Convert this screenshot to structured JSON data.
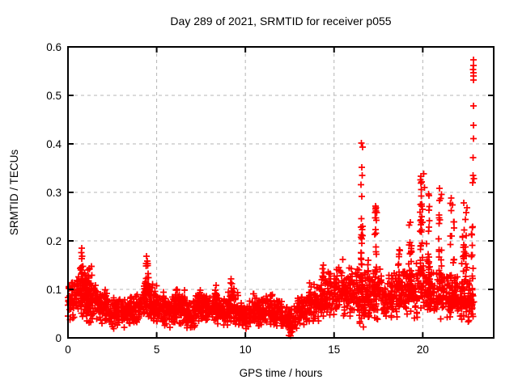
{
  "chart_data": {
    "type": "scatter",
    "title": "Day 289 of 2021, SRMTID for receiver p055",
    "xlabel": "GPS time / hours",
    "ylabel": "SRMTID / TECUs",
    "xlim": [
      0,
      24
    ],
    "ylim": [
      0,
      0.6
    ],
    "xticks": [
      0,
      5,
      10,
      15,
      20
    ],
    "xtick_labels": [
      "0",
      "5",
      "10",
      "15",
      "20"
    ],
    "yticks": [
      0,
      0.1,
      0.2,
      0.3,
      0.4,
      0.5,
      0.6
    ],
    "ytick_labels": [
      "0",
      "0.1",
      "0.2",
      "0.3",
      "0.4",
      "0.5",
      "0.6"
    ],
    "grid": true,
    "legend": "none",
    "marker": "plus",
    "marker_color": "#ff0000",
    "grid_color": "#b4b4b4",
    "frame_color": "#000000",
    "background_color": "#ffffff",
    "seed": 289,
    "series": [
      {
        "name": "SRMTID",
        "bands": [
          [
            0.0,
            0.5,
            55,
            0.03,
            0.125
          ],
          [
            0.5,
            1.0,
            60,
            0.035,
            0.14
          ],
          [
            1.0,
            1.6,
            70,
            0.03,
            0.13
          ],
          [
            1.6,
            2.2,
            65,
            0.025,
            0.105
          ],
          [
            2.2,
            2.9,
            65,
            0.015,
            0.09
          ],
          [
            2.9,
            3.5,
            60,
            0.02,
            0.085
          ],
          [
            3.5,
            4.2,
            70,
            0.025,
            0.1
          ],
          [
            4.2,
            4.8,
            65,
            0.03,
            0.12
          ],
          [
            4.8,
            5.4,
            60,
            0.025,
            0.1
          ],
          [
            5.4,
            6.0,
            60,
            0.02,
            0.09
          ],
          [
            6.0,
            6.6,
            65,
            0.025,
            0.105
          ],
          [
            6.6,
            7.2,
            60,
            0.015,
            0.08
          ],
          [
            7.2,
            7.8,
            65,
            0.025,
            0.1
          ],
          [
            7.8,
            8.4,
            65,
            0.025,
            0.1
          ],
          [
            8.4,
            9.0,
            65,
            0.02,
            0.09
          ],
          [
            9.0,
            9.6,
            65,
            0.025,
            0.11
          ],
          [
            9.6,
            10.2,
            60,
            0.015,
            0.08
          ],
          [
            10.2,
            10.9,
            65,
            0.015,
            0.09
          ],
          [
            10.9,
            11.5,
            60,
            0.025,
            0.095
          ],
          [
            11.5,
            12.1,
            60,
            0.02,
            0.09
          ],
          [
            12.1,
            12.9,
            60,
            0.005,
            0.07
          ],
          [
            12.9,
            13.6,
            65,
            0.02,
            0.1
          ],
          [
            13.6,
            14.3,
            70,
            0.03,
            0.12
          ],
          [
            14.3,
            15.0,
            70,
            0.035,
            0.14
          ],
          [
            15.0,
            15.7,
            70,
            0.04,
            0.15
          ],
          [
            15.7,
            16.4,
            65,
            0.04,
            0.15
          ],
          [
            16.4,
            17.0,
            60,
            0.02,
            0.14
          ],
          [
            17.0,
            17.7,
            65,
            0.035,
            0.15
          ],
          [
            17.7,
            18.4,
            65,
            0.03,
            0.14
          ],
          [
            18.4,
            19.1,
            65,
            0.04,
            0.15
          ],
          [
            19.1,
            19.8,
            65,
            0.04,
            0.16
          ],
          [
            19.8,
            20.5,
            65,
            0.04,
            0.16
          ],
          [
            20.5,
            21.2,
            65,
            0.035,
            0.15
          ],
          [
            21.2,
            21.9,
            65,
            0.03,
            0.14
          ],
          [
            21.9,
            22.9,
            90,
            0.03,
            0.13
          ]
        ],
        "columns": [
          [
            0.78,
            0.18,
            20,
            0.05,
            0.165
          ],
          [
            1.15,
            0.4,
            25,
            0.05,
            0.15
          ],
          [
            4.45,
            0.22,
            22,
            0.04,
            0.155
          ],
          [
            5.0,
            0.1,
            8,
            0.05,
            0.115
          ],
          [
            6.1,
            0.12,
            8,
            0.05,
            0.105
          ],
          [
            7.4,
            0.12,
            8,
            0.04,
            0.1
          ],
          [
            8.35,
            0.12,
            8,
            0.05,
            0.105
          ],
          [
            9.2,
            0.1,
            8,
            0.05,
            0.115
          ],
          [
            10.5,
            0.12,
            8,
            0.03,
            0.095
          ],
          [
            12.5,
            0.15,
            10,
            0.004,
            0.05
          ],
          [
            14.35,
            0.15,
            10,
            0.06,
            0.145
          ],
          [
            16.55,
            0.12,
            26,
            0.09,
            0.23
          ],
          [
            16.9,
            0.12,
            12,
            0.06,
            0.16
          ],
          [
            17.35,
            0.12,
            20,
            0.1,
            0.27
          ],
          [
            18.6,
            0.2,
            15,
            0.06,
            0.19
          ],
          [
            19.3,
            0.15,
            24,
            0.08,
            0.25
          ],
          [
            19.92,
            0.15,
            34,
            0.1,
            0.33
          ],
          [
            20.3,
            0.18,
            26,
            0.08,
            0.3
          ],
          [
            21.0,
            0.25,
            20,
            0.08,
            0.3
          ],
          [
            21.65,
            0.25,
            22,
            0.06,
            0.28
          ],
          [
            22.35,
            0.3,
            30,
            0.05,
            0.29
          ],
          [
            22.8,
            0.12,
            18,
            0.04,
            0.24
          ]
        ],
        "outliers": [
          [
            0.78,
            0.185
          ],
          [
            0.76,
            0.176
          ],
          [
            0.8,
            0.168
          ],
          [
            4.42,
            0.168
          ],
          [
            4.47,
            0.158
          ],
          [
            8.35,
            0.108
          ],
          [
            9.2,
            0.122
          ],
          [
            9.23,
            0.112
          ],
          [
            14.4,
            0.15
          ],
          [
            15.5,
            0.162
          ],
          [
            16.55,
            0.402
          ],
          [
            16.6,
            0.393
          ],
          [
            16.56,
            0.352
          ],
          [
            16.58,
            0.335
          ],
          [
            16.52,
            0.316
          ],
          [
            16.57,
            0.292
          ],
          [
            16.54,
            0.246
          ],
          [
            17.33,
            0.272
          ],
          [
            17.36,
            0.262
          ],
          [
            19.9,
            0.333
          ],
          [
            19.94,
            0.322
          ],
          [
            20.05,
            0.338
          ],
          [
            20.1,
            0.31
          ],
          [
            20.95,
            0.308
          ],
          [
            21.6,
            0.288
          ],
          [
            22.85,
            0.573
          ],
          [
            22.86,
            0.562
          ],
          [
            22.84,
            0.553
          ],
          [
            22.86,
            0.547
          ],
          [
            22.85,
            0.54
          ],
          [
            22.85,
            0.532
          ],
          [
            22.86,
            0.478
          ],
          [
            22.85,
            0.438
          ],
          [
            22.87,
            0.411
          ],
          [
            22.84,
            0.372
          ],
          [
            22.83,
            0.335
          ],
          [
            22.88,
            0.328
          ],
          [
            22.81,
            0.32
          ]
        ]
      }
    ]
  }
}
